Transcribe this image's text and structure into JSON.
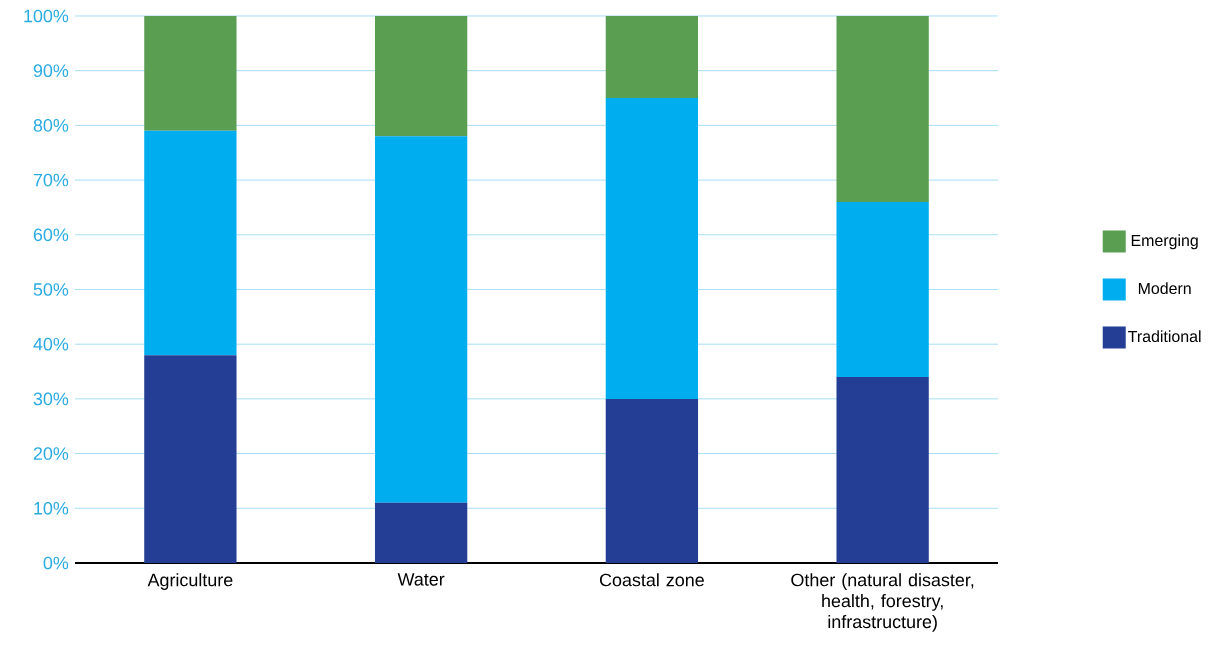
{
  "chart_data": {
    "type": "bar",
    "stacked": true,
    "categories": [
      "Agriculture",
      "Water",
      "Coastal zone",
      "Other (natural disaster, health, forestry, infrastructure)"
    ],
    "series": [
      {
        "name": "Traditional",
        "color": "#233e94",
        "values": [
          38,
          11,
          30,
          34
        ]
      },
      {
        "name": "Modern",
        "color": "#00adef",
        "values": [
          41,
          67,
          55,
          32
        ]
      },
      {
        "name": "Emerging",
        "color": "#5a9e52",
        "values": [
          21,
          22,
          15,
          34
        ]
      }
    ],
    "ylim": [
      0,
      100
    ],
    "yticks": [
      {
        "value": 0,
        "label": "0%"
      },
      {
        "value": 10,
        "label": "10%"
      },
      {
        "value": 20,
        "label": "20%"
      },
      {
        "value": 30,
        "label": "30%"
      },
      {
        "value": 40,
        "label": "40%"
      },
      {
        "value": 50,
        "label": "50%"
      },
      {
        "value": 60,
        "label": "60%"
      },
      {
        "value": 70,
        "label": "70%"
      },
      {
        "value": 80,
        "label": "80%"
      },
      {
        "value": 90,
        "label": "90%"
      },
      {
        "value": 100,
        "label": "100%"
      }
    ],
    "grid": "y",
    "legend": "right"
  }
}
